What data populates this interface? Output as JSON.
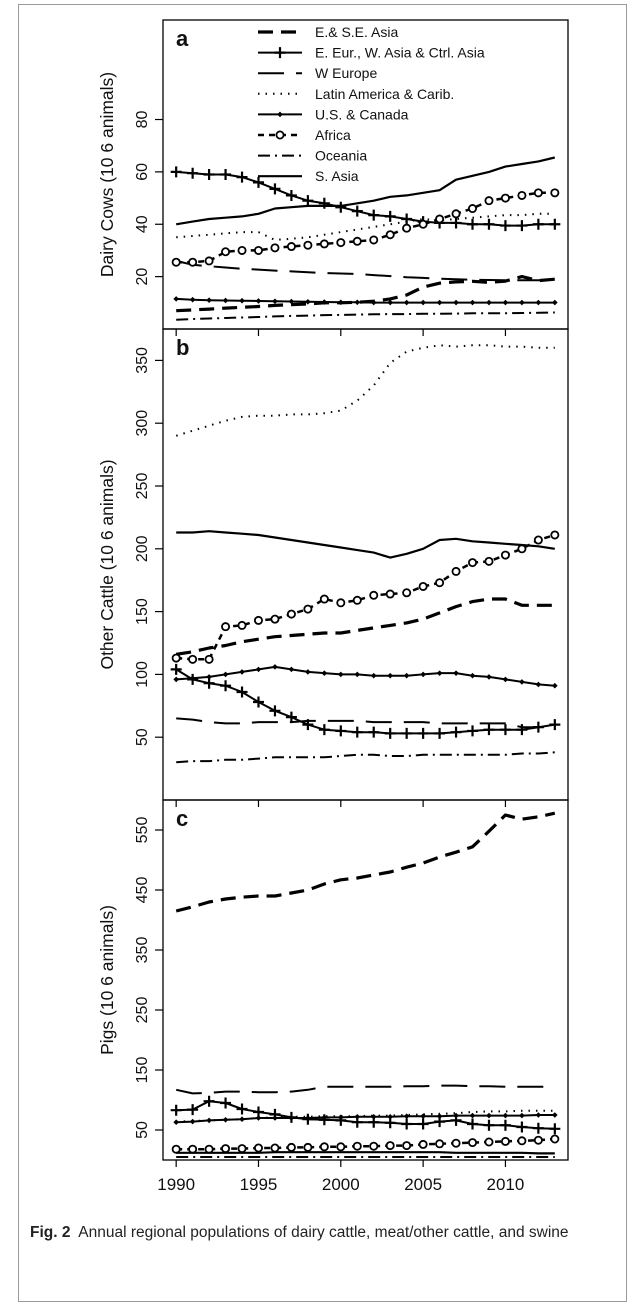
{
  "caption": {
    "label": "Fig. 2",
    "text": "Annual regional populations of dairy cattle, meat/other cattle, and swine"
  },
  "styles": {
    "E.& S.E. Asia": {
      "dash": "15,8",
      "width": 3.2,
      "marker": "none"
    },
    "E. Eur., W. Asia & Ctrl. Asia": {
      "dash": "none",
      "width": 2,
      "marker": "plus"
    },
    "W Europe": {
      "dash": "26,12",
      "width": 2,
      "marker": "none"
    },
    "Latin America & Carib.": {
      "dash": "1.5,6",
      "width": 2,
      "marker": "none"
    },
    "U.S. & Canada": {
      "dash": "none",
      "width": 2,
      "marker": "diamond"
    },
    "Africa": {
      "dash": "6,5",
      "width": 2.5,
      "marker": "circle"
    },
    "Oceania": {
      "dash": "12,5,2,5",
      "width": 2,
      "marker": "none"
    },
    "S. Asia": {
      "dash": "none",
      "width": 2.2,
      "marker": "none"
    }
  },
  "chart_data": [
    {
      "type": "line",
      "panel_label": "a",
      "ylabel": "Dairy Cows (10 6 animals)",
      "ylim": [
        0,
        118
      ],
      "yticks": [
        20,
        40,
        60,
        80
      ],
      "xlim": [
        1989.2,
        2013.8
      ],
      "legend": {
        "position": "top-right",
        "entries": [
          "E.& S.E. Asia",
          "E. Eur., W. Asia & Ctrl. Asia",
          "W Europe",
          "Latin America & Carib.",
          "U.S. & Canada",
          "Africa",
          "Oceania",
          "S. Asia"
        ]
      },
      "x": [
        1990,
        1991,
        1992,
        1993,
        1994,
        1995,
        1996,
        1997,
        1998,
        1999,
        2000,
        2001,
        2002,
        2003,
        2004,
        2005,
        2006,
        2007,
        2008,
        2009,
        2010,
        2011,
        2012,
        2013
      ],
      "series": [
        {
          "name": "E.& S.E. Asia",
          "values": [
            7,
            7.3,
            7.6,
            8,
            8.3,
            8.6,
            9,
            9.3,
            9.6,
            10,
            10,
            10.2,
            10.6,
            11.5,
            13,
            16,
            17.5,
            18,
            18.2,
            17.8,
            18.3,
            20,
            18.5,
            19
          ]
        },
        {
          "name": "E. Eur., W. Asia & Ctrl. Asia",
          "values": [
            60,
            59.5,
            59,
            59,
            58,
            56,
            53.5,
            51,
            49,
            48,
            46.5,
            45,
            43.5,
            43,
            42,
            41,
            40.5,
            40.5,
            40,
            40,
            39.5,
            39.5,
            40,
            40
          ]
        },
        {
          "name": "W Europe",
          "values": [
            26,
            24.5,
            24,
            23.5,
            23,
            22.7,
            22.3,
            22,
            21.7,
            21.4,
            21.2,
            21,
            20.6,
            20.2,
            19.8,
            19.5,
            19.2,
            19,
            18.8,
            18.7,
            18.6,
            18.6,
            18.6,
            18.7
          ]
        },
        {
          "name": "Latin America & Carib.",
          "values": [
            35,
            35.5,
            36,
            36.5,
            37,
            37,
            34,
            34.5,
            35,
            36,
            37,
            38,
            39,
            40,
            41,
            42,
            41.5,
            42,
            42.5,
            43,
            43.5,
            43.5,
            44,
            44
          ]
        },
        {
          "name": "U.S. & Canada",
          "values": [
            11.5,
            11.2,
            11,
            10.9,
            10.8,
            10.7,
            10.6,
            10.5,
            10.4,
            10.3,
            10.2,
            10.2,
            10.1,
            10.1,
            10.1,
            10.1,
            10.1,
            10.1,
            10.1,
            10.1,
            10.1,
            10.1,
            10.1,
            10.1
          ]
        },
        {
          "name": "Africa",
          "values": [
            25.5,
            25.5,
            26,
            29.5,
            30,
            30,
            31,
            31.5,
            32,
            32.5,
            33,
            33.5,
            34,
            36,
            38.5,
            40,
            42,
            44,
            46,
            49,
            50,
            51,
            52,
            52
          ]
        },
        {
          "name": "Oceania",
          "values": [
            3.5,
            3.8,
            4,
            4.2,
            4.4,
            4.6,
            4.8,
            5,
            5.1,
            5.3,
            5.4,
            5.5,
            5.6,
            5.7,
            5.7,
            5.8,
            5.8,
            5.9,
            6,
            6,
            6,
            6.1,
            6.2,
            6.3
          ]
        },
        {
          "name": "S. Asia",
          "values": [
            40,
            41,
            42,
            42.5,
            43,
            44,
            46,
            46.5,
            47,
            47,
            47,
            48,
            49,
            50.5,
            51,
            52,
            53,
            57,
            58.5,
            60,
            62,
            63,
            64,
            65.5
          ]
        }
      ]
    },
    {
      "type": "line",
      "panel_label": "b",
      "ylabel": "Other Cattle (10 6 animals)",
      "ylim": [
        0,
        375
      ],
      "yticks": [
        50,
        100,
        150,
        200,
        250,
        300,
        350
      ],
      "xlim": [
        1989.2,
        2013.8
      ],
      "x": [
        1990,
        1991,
        1992,
        1993,
        1994,
        1995,
        1996,
        1997,
        1998,
        1999,
        2000,
        2001,
        2002,
        2003,
        2004,
        2005,
        2006,
        2007,
        2008,
        2009,
        2010,
        2011,
        2012,
        2013
      ],
      "series": [
        {
          "name": "E.& S.E. Asia",
          "values": [
            116,
            118,
            121,
            123,
            126,
            128,
            130,
            131,
            132,
            133,
            133,
            135,
            137,
            139,
            141,
            144,
            149,
            154,
            158,
            160,
            160,
            155,
            155,
            155
          ]
        },
        {
          "name": "E. Eur., W. Asia & Ctrl. Asia",
          "values": [
            104,
            96,
            93,
            91,
            86,
            78,
            71,
            66,
            60,
            56,
            55,
            54,
            54,
            53,
            53,
            53,
            53,
            54,
            55,
            56,
            56,
            56,
            58,
            60
          ]
        },
        {
          "name": "W Europe",
          "values": [
            65,
            64,
            62,
            61,
            61,
            62,
            62,
            62,
            63,
            63,
            63,
            63,
            62,
            62,
            62,
            62,
            61,
            61,
            61,
            61,
            61,
            58,
            58,
            59
          ]
        },
        {
          "name": "Latin America & Carib.",
          "values": [
            290,
            294,
            298,
            302,
            305,
            306,
            306,
            307,
            307,
            308,
            310,
            318,
            330,
            348,
            357,
            360,
            362,
            361,
            362,
            362,
            361,
            361,
            360,
            360
          ]
        },
        {
          "name": "U.S. & Canada",
          "values": [
            96,
            97,
            98,
            100,
            102,
            104,
            106,
            104,
            102,
            101,
            100,
            100,
            99,
            99,
            99,
            100,
            101,
            101,
            99,
            98,
            96,
            94,
            92,
            91
          ]
        },
        {
          "name": "Africa",
          "values": [
            113,
            112,
            112,
            138,
            139,
            143,
            144,
            148,
            152,
            160,
            157,
            159,
            163,
            164,
            165,
            170,
            173,
            182,
            189,
            190,
            195,
            200,
            207,
            211
          ]
        },
        {
          "name": "Oceania",
          "values": [
            30,
            31,
            31,
            32,
            32,
            33,
            34,
            34,
            34,
            34,
            35,
            36,
            36,
            35,
            35,
            36,
            36,
            36,
            36,
            36,
            36,
            37,
            37,
            38
          ]
        },
        {
          "name": "S. Asia",
          "values": [
            213,
            213,
            214,
            213,
            212,
            211,
            209,
            207,
            205,
            203,
            201,
            199,
            197,
            193,
            196,
            200,
            207,
            208,
            206,
            205,
            204,
            203,
            202,
            200
          ]
        }
      ]
    },
    {
      "type": "line",
      "panel_label": "c",
      "ylabel": "Pigs (10 6 animals)",
      "ylim": [
        0,
        600
      ],
      "yticks": [
        50,
        150,
        250,
        350,
        450,
        550
      ],
      "xlim": [
        1989.2,
        2013.8
      ],
      "xticks": [
        1990,
        1995,
        2000,
        2005,
        2010
      ],
      "xlabel": "Year",
      "x": [
        1990,
        1991,
        1992,
        1993,
        1994,
        1995,
        1996,
        1997,
        1998,
        1999,
        2000,
        2001,
        2002,
        2003,
        2004,
        2005,
        2006,
        2007,
        2008,
        2009,
        2010,
        2011,
        2012,
        2013
      ],
      "series": [
        {
          "name": "E.& S.E. Asia",
          "values": [
            415,
            422,
            430,
            435,
            438,
            440,
            440,
            445,
            450,
            460,
            467,
            470,
            475,
            480,
            488,
            495,
            505,
            513,
            522,
            548,
            575,
            568,
            572,
            578
          ]
        },
        {
          "name": "E. Eur., W. Asia & Ctrl. Asia",
          "values": [
            83,
            84,
            98,
            95,
            85,
            80,
            76,
            71,
            68,
            67,
            66,
            63,
            63,
            62,
            60,
            60,
            64,
            66,
            60,
            58,
            58,
            55,
            53,
            52
          ]
        },
        {
          "name": "W Europe",
          "values": [
            117,
            111,
            112,
            114,
            114,
            113,
            113,
            114,
            117,
            122,
            122,
            122,
            122,
            122,
            123,
            123,
            124,
            124,
            123,
            123,
            122,
            122,
            122,
            122
          ]
        },
        {
          "name": "Latin America & Carib.",
          "values": [
            64,
            65,
            66,
            67,
            68,
            70,
            71,
            72,
            72,
            73,
            73,
            73,
            74,
            74,
            75,
            76,
            77,
            78,
            80,
            81,
            81,
            82,
            82,
            82
          ]
        },
        {
          "name": "U.S. & Canada",
          "values": [
            63,
            64,
            66,
            67,
            68,
            70,
            70,
            70,
            70,
            71,
            71,
            72,
            72,
            72,
            73,
            73,
            73,
            74,
            74,
            74,
            74,
            74,
            75,
            75
          ]
        },
        {
          "name": "Africa",
          "values": [
            18,
            18,
            18,
            19,
            19,
            20,
            20,
            21,
            21,
            22,
            22,
            23,
            23,
            24,
            24,
            26,
            27,
            28,
            29,
            30,
            31,
            32,
            33,
            35
          ]
        },
        {
          "name": "Oceania",
          "values": [
            5,
            5,
            5,
            5,
            5,
            5,
            5,
            5,
            5,
            5,
            5,
            5,
            5,
            5,
            5,
            5,
            5,
            5,
            5,
            5,
            5,
            5,
            5,
            5
          ]
        },
        {
          "name": "S. Asia",
          "values": [
            12,
            12,
            12,
            12,
            12,
            12,
            13,
            13,
            13,
            13,
            13,
            13,
            13,
            13,
            13,
            13,
            13,
            12,
            12,
            12,
            12,
            12,
            11,
            11
          ]
        }
      ]
    }
  ]
}
